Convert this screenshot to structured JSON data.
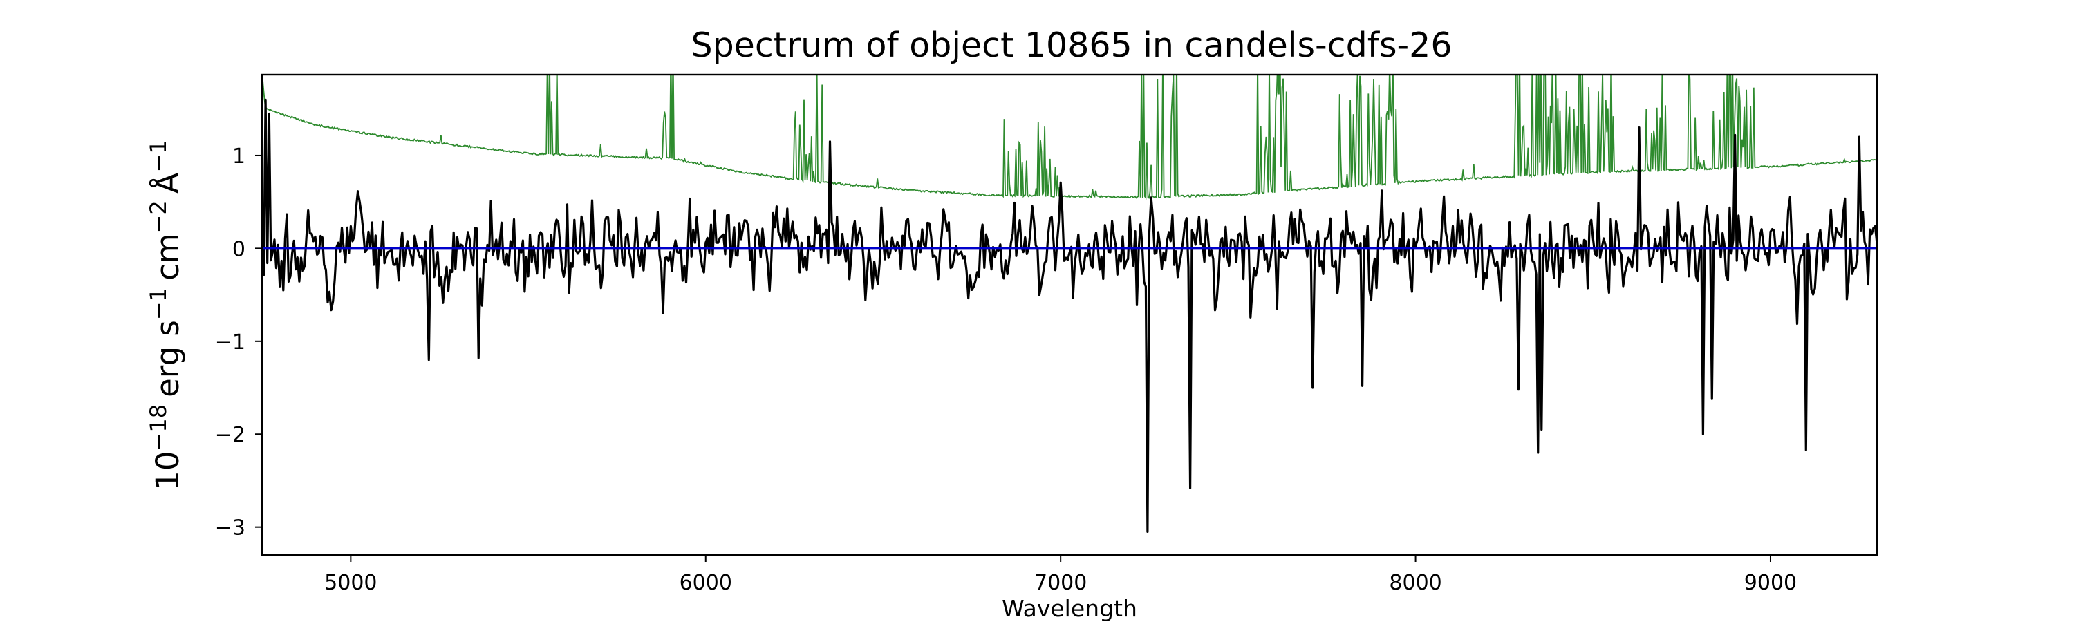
{
  "chart_data": {
    "type": "line",
    "title": "Spectrum of object 10865 in candels-cdfs-26",
    "xlabel": "Wavelength",
    "ylabel": {
      "base": "10",
      "exponent": "−18",
      "unit_erg": "erg s",
      "unit_s_exp": "−1",
      "unit_cm": "cm",
      "unit_cm_exp": "−2",
      "unit_a": "Å",
      "unit_a_exp": "−1"
    },
    "xlim": [
      4750,
      9300
    ],
    "ylim": [
      -3.3,
      1.87
    ],
    "x_ticks": [
      5000,
      6000,
      7000,
      8000,
      9000
    ],
    "x_tick_labels": [
      "5000",
      "6000",
      "7000",
      "8000",
      "9000"
    ],
    "y_ticks": [
      -3,
      -2,
      -1,
      0,
      1
    ],
    "y_tick_labels": [
      "−3",
      "−2",
      "−1",
      "0",
      "1"
    ],
    "grid": false,
    "legend": "none",
    "colors": {
      "flux": "#000000",
      "error": "#2e8b2e",
      "model": "#0000cc"
    },
    "series": [
      {
        "id": "flux",
        "x_start": 4750,
        "x_end": 9300,
        "x_step": 5,
        "seed": 10865,
        "noise_amplitude": 0.28,
        "features": [
          {
            "x": 7245,
            "y": -3.05
          },
          {
            "x": 7365,
            "y": -2.58
          },
          {
            "x": 8345,
            "y": -2.2
          },
          {
            "x": 8355,
            "y": -1.95
          },
          {
            "x": 8290,
            "y": -1.52
          },
          {
            "x": 8810,
            "y": -2.0
          },
          {
            "x": 8835,
            "y": -1.62
          },
          {
            "x": 9100,
            "y": -2.17
          },
          {
            "x": 5220,
            "y": -1.2
          },
          {
            "x": 5360,
            "y": -1.18
          },
          {
            "x": 7710,
            "y": -1.5
          },
          {
            "x": 7850,
            "y": -1.48
          },
          {
            "x": 4760,
            "y": 1.6
          },
          {
            "x": 4770,
            "y": 1.45
          },
          {
            "x": 8630,
            "y": 1.3
          },
          {
            "x": 8900,
            "y": 1.22
          },
          {
            "x": 9250,
            "y": 1.2
          },
          {
            "x": 6350,
            "y": 1.15
          }
        ]
      },
      {
        "id": "error",
        "continuum": [
          {
            "x": 4750,
            "y": 1.87
          },
          {
            "x": 4760,
            "y": 1.5
          },
          {
            "x": 4900,
            "y": 1.33
          },
          {
            "x": 5100,
            "y": 1.2
          },
          {
            "x": 5500,
            "y": 1.02
          },
          {
            "x": 5900,
            "y": 0.97
          },
          {
            "x": 6100,
            "y": 0.82
          },
          {
            "x": 6300,
            "y": 0.72
          },
          {
            "x": 6600,
            "y": 0.62
          },
          {
            "x": 6820,
            "y": 0.57
          },
          {
            "x": 7100,
            "y": 0.56
          },
          {
            "x": 7250,
            "y": 0.55
          },
          {
            "x": 7500,
            "y": 0.58
          },
          {
            "x": 8000,
            "y": 0.72
          },
          {
            "x": 8500,
            "y": 0.82
          },
          {
            "x": 9000,
            "y": 0.88
          },
          {
            "x": 9300,
            "y": 0.95
          }
        ],
        "line_clusters": [
          {
            "from": 5550,
            "to": 5590,
            "peak": 1.9
          },
          {
            "from": 5880,
            "to": 5910,
            "peak": 1.87
          },
          {
            "from": 6250,
            "to": 6330,
            "peak": 1.75
          },
          {
            "from": 6840,
            "to": 7000,
            "peak": 1.2
          },
          {
            "from": 7220,
            "to": 7330,
            "peak": 1.87
          },
          {
            "from": 7550,
            "to": 7660,
            "peak": 1.87
          },
          {
            "from": 7780,
            "to": 7950,
            "peak": 1.87
          },
          {
            "from": 8270,
            "to": 8560,
            "peak": 1.87
          },
          {
            "from": 8650,
            "to": 8720,
            "peak": 1.62
          },
          {
            "from": 8770,
            "to": 8960,
            "peak": 1.87
          }
        ]
      },
      {
        "id": "model",
        "points": [
          {
            "x": 4750,
            "y": 0.0
          },
          {
            "x": 9300,
            "y": 0.0
          }
        ]
      }
    ]
  }
}
